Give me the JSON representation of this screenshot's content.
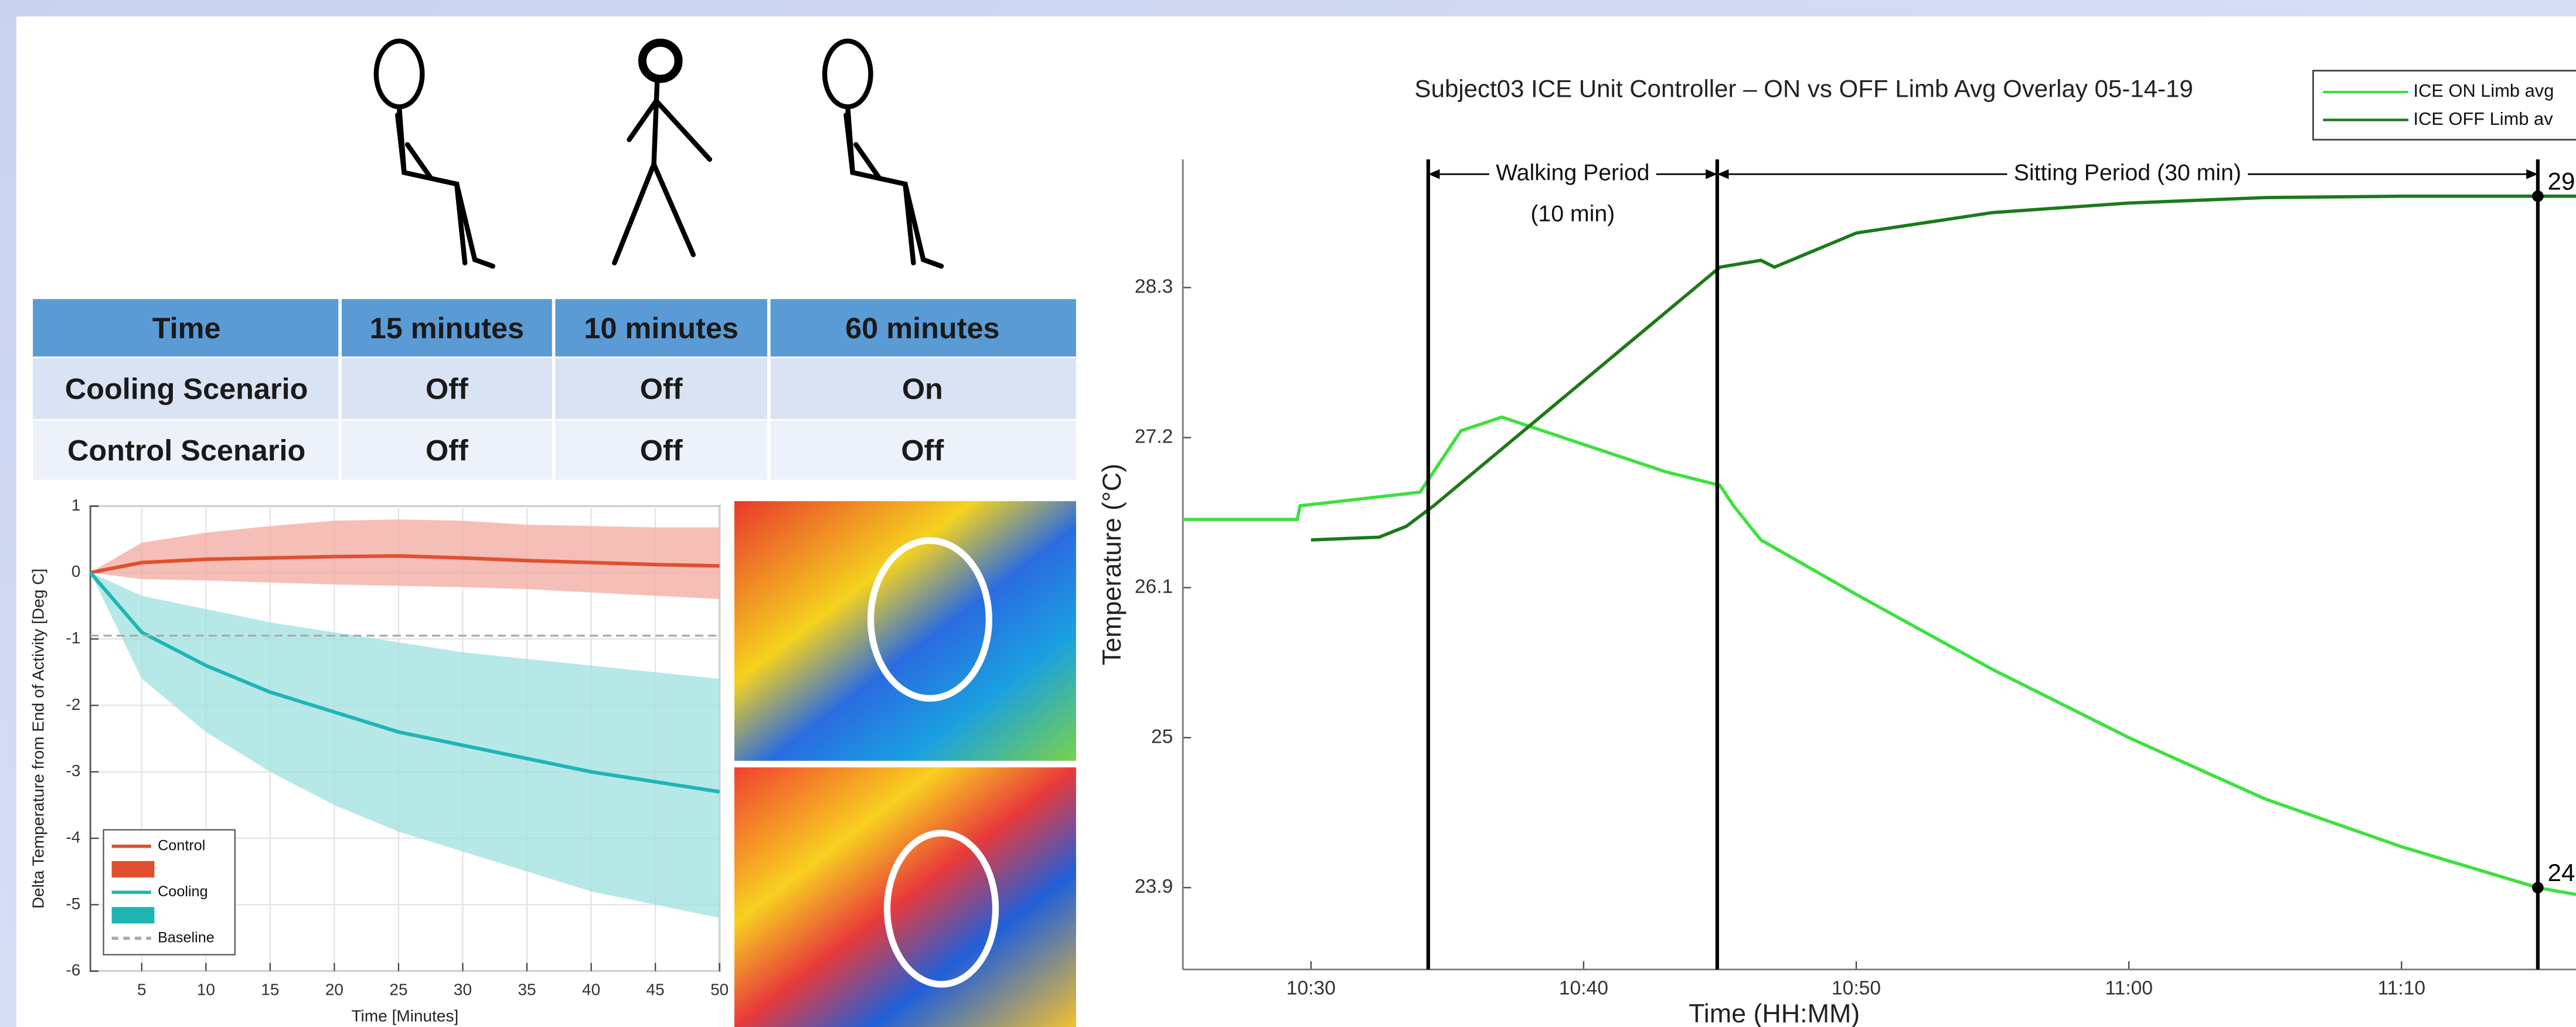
{
  "table": {
    "header": [
      "Time",
      "15 minutes",
      "10 minutes",
      "60 minutes"
    ],
    "rows": [
      [
        "Cooling Scenario",
        "Off",
        "Off",
        "On"
      ],
      [
        "Control Scenario",
        "Off",
        "Off",
        "Off"
      ]
    ]
  },
  "chart_data": [
    {
      "type": "line",
      "xlabel": "Time [Minutes]",
      "ylabel": "Delta Temperature from End of Activity [Deg C]",
      "x": [
        1,
        5,
        10,
        15,
        20,
        25,
        30,
        35,
        40,
        45,
        50
      ],
      "xlim": [
        1,
        50
      ],
      "xticks": [
        5,
        10,
        15,
        20,
        25,
        30,
        35,
        40,
        45,
        50
      ],
      "ylim": [
        -6,
        1
      ],
      "yticks": [
        -6,
        -5,
        -4,
        -3,
        -2,
        -1,
        0,
        1
      ],
      "grid": true,
      "legend": "lower left",
      "series": [
        {
          "name": "Control",
          "color": "#e0502e",
          "band_color": "#f2aaa0",
          "values": [
            0,
            0.15,
            0.2,
            0.22,
            0.24,
            0.25,
            0.22,
            0.18,
            0.15,
            0.12,
            0.1
          ],
          "upper": [
            0,
            0.45,
            0.6,
            0.7,
            0.78,
            0.8,
            0.78,
            0.72,
            0.7,
            0.68,
            0.68
          ],
          "lower": [
            0,
            -0.1,
            -0.12,
            -0.15,
            -0.18,
            -0.2,
            -0.22,
            -0.25,
            -0.3,
            -0.35,
            -0.4
          ]
        },
        {
          "name": "Cooling",
          "color": "#1fb5b5",
          "band_color": "#9fe0e0",
          "values": [
            0,
            -0.9,
            -1.4,
            -1.8,
            -2.1,
            -2.4,
            -2.6,
            -2.8,
            -3.0,
            -3.15,
            -3.3
          ],
          "upper": [
            0,
            -0.35,
            -0.55,
            -0.75,
            -0.9,
            -1.05,
            -1.2,
            -1.3,
            -1.4,
            -1.5,
            -1.6
          ],
          "lower": [
            0,
            -1.6,
            -2.4,
            -3.0,
            -3.5,
            -3.9,
            -4.2,
            -4.5,
            -4.8,
            -5.0,
            -5.2
          ]
        },
        {
          "name": "Baseline",
          "color": "#aaaaaa",
          "dashed": true,
          "level": -0.95
        }
      ]
    },
    {
      "type": "line",
      "title": "Subject03 ICE Unit Controller – ON vs OFF Limb Avg Overlay 05-14-19",
      "xlabel": "Time (HH:MM)",
      "ylabel": "Temperature (°C)",
      "xlim": [
        625.3,
        676.4
      ],
      "xticks": [
        {
          "value": 630,
          "label": "10:30"
        },
        {
          "value": 640,
          "label": "10:40"
        },
        {
          "value": 650,
          "label": "10:50"
        },
        {
          "value": 660,
          "label": "11:00"
        },
        {
          "value": 670,
          "label": "11:10"
        }
      ],
      "ylim": [
        23.3,
        29.24
      ],
      "yticks": [
        23.9,
        25,
        26.1,
        27.2,
        28.3
      ],
      "grid": false,
      "legend": "upper right",
      "vlines": [
        634.3,
        644.9,
        675
      ],
      "annotations": [
        "Walking Period",
        "(10 min)",
        "Sitting Period (30 min)",
        "29",
        "24"
      ],
      "series": [
        {
          "name": "ICE ON Limb avg",
          "color": "#3fe03f",
          "x": [
            625.3,
            629.5,
            629.6,
            634,
            634.5,
            635.5,
            637,
            640,
            643,
            645,
            645.5,
            646.5,
            650,
            655,
            660,
            665,
            670,
            675,
            676.4
          ],
          "values": [
            26.6,
            26.6,
            26.7,
            26.8,
            26.95,
            27.25,
            27.35,
            27.15,
            26.95,
            26.85,
            26.7,
            26.45,
            26.05,
            25.5,
            25.0,
            24.55,
            24.2,
            23.9,
            23.85
          ]
        },
        {
          "name": "ICE OFF Limb av",
          "color": "#1a7a1a",
          "x": [
            630,
            632.5,
            633.5,
            634.5,
            645,
            646.5,
            647,
            650,
            655,
            660,
            665,
            670,
            675,
            676.4
          ],
          "values": [
            26.45,
            26.47,
            26.55,
            26.7,
            28.45,
            28.5,
            28.45,
            28.7,
            28.85,
            28.92,
            28.96,
            28.97,
            28.97,
            28.97
          ]
        }
      ]
    }
  ]
}
